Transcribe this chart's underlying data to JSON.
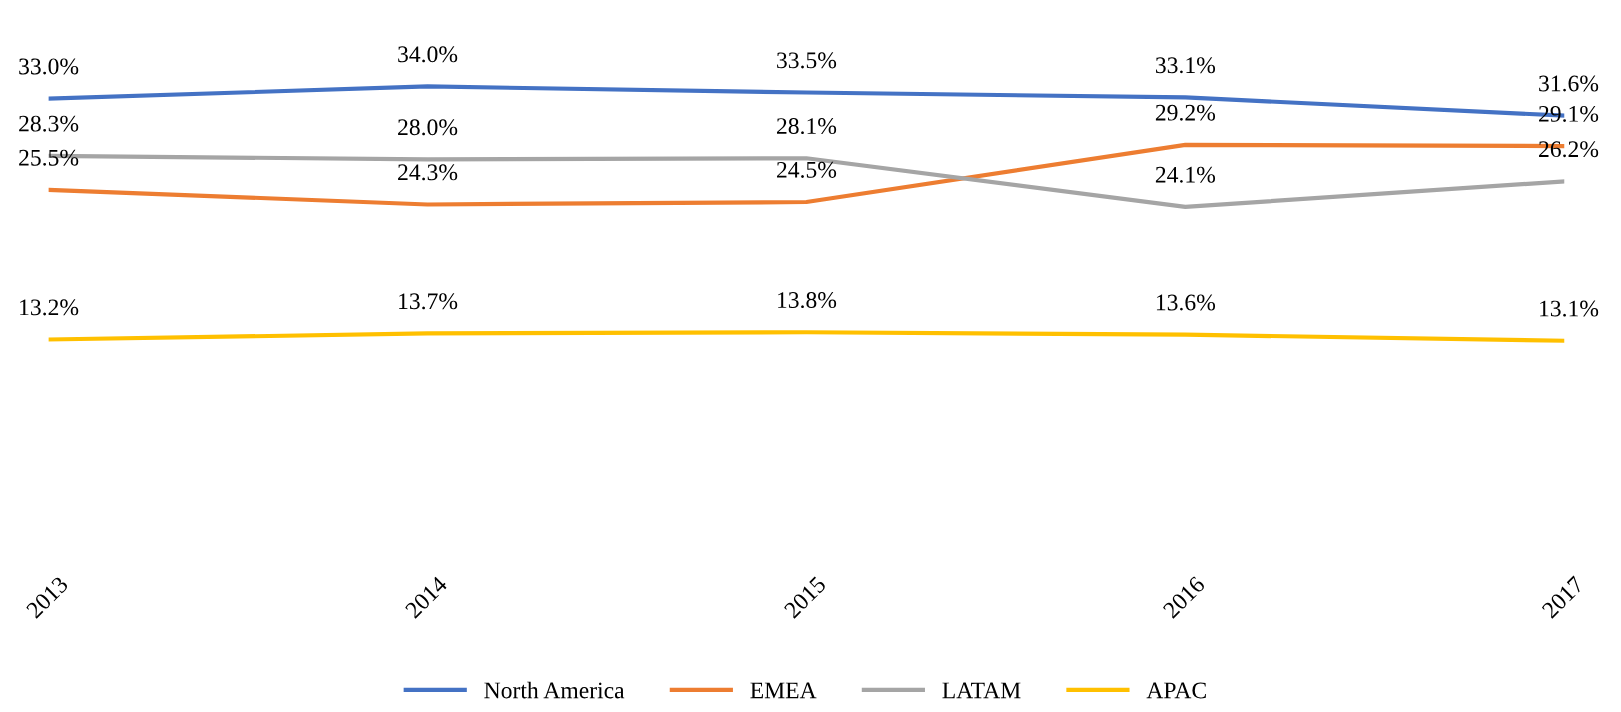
{
  "chart_data": {
    "type": "line",
    "categories": [
      "2013",
      "2014",
      "2015",
      "2016",
      "2017"
    ],
    "series": [
      {
        "name": "North America",
        "color": "#4472c4",
        "values": [
          33.0,
          34.0,
          33.5,
          33.1,
          31.6
        ],
        "value_labels": [
          "33.0%",
          "34.0%",
          "33.5%",
          "33.1%",
          "31.6%"
        ]
      },
      {
        "name": "EMEA",
        "color": "#ed7d31",
        "values": [
          25.5,
          24.3,
          24.5,
          29.2,
          29.1
        ],
        "value_labels": [
          "25.5%",
          "24.3%",
          "24.5%",
          "29.2%",
          "29.1%"
        ]
      },
      {
        "name": "LATAM",
        "color": "#a5a5a5",
        "values": [
          28.3,
          28.0,
          28.1,
          24.1,
          26.2
        ],
        "value_labels": [
          "28.3%",
          "28.0%",
          "28.1%",
          "24.1%",
          "26.2%"
        ]
      },
      {
        "name": "APAC",
        "color": "#ffc000",
        "values": [
          13.2,
          13.7,
          13.8,
          13.6,
          13.1
        ],
        "value_labels": [
          "13.2%",
          "13.7%",
          "13.8%",
          "13.6%",
          "13.1%"
        ]
      }
    ],
    "tick_labels": "x",
    "legend": "bottom",
    "marker": "none",
    "line_style": "solid"
  }
}
